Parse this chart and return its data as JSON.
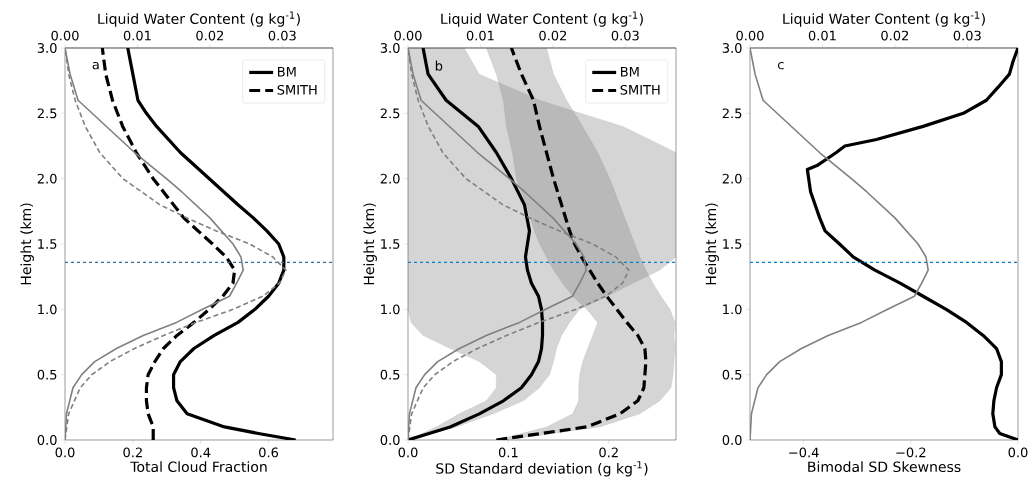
{
  "chart_data": [
    {
      "type": "line",
      "orientation": "horizontal",
      "xlabel": "Total Cloud Fraction",
      "x2label": "Liquid Water Content (g kg$^{-1}$)",
      "ylabel": "Height (km)",
      "annotations": [
        "a"
      ],
      "xlim": [
        0,
        0.79
      ],
      "xticks": [
        {
          "value": 0,
          "label": "0.0"
        },
        {
          "value": 0.2,
          "label": "0.2"
        },
        {
          "value": 0.4,
          "label": "0.4"
        },
        {
          "value": 0.6,
          "label": "0.6"
        }
      ],
      "x2lim": [
        0,
        0.037
      ],
      "x2ticks": [
        {
          "value": 0,
          "label": "0.00"
        },
        {
          "value": 0.01,
          "label": "0.01"
        },
        {
          "value": 0.02,
          "label": "0.02"
        },
        {
          "value": 0.03,
          "label": "0.03"
        }
      ],
      "ylim": [
        0,
        3
      ],
      "yticks": [
        {
          "value": 0,
          "label": "0.0"
        },
        {
          "value": 0.5,
          "label": "0.5"
        },
        {
          "value": 1,
          "label": "1.0"
        },
        {
          "value": 1.5,
          "label": "1.5"
        },
        {
          "value": 2,
          "label": "2.0"
        },
        {
          "value": 2.5,
          "label": "2.5"
        },
        {
          "value": 3,
          "label": "3.0"
        }
      ],
      "legend": "top right",
      "ref_lines": [
        {
          "axis": "y",
          "value": 1.36,
          "color": "#1f77b4",
          "line_style": "dashed"
        }
      ],
      "series": [
        {
          "name": "BM",
          "color": "#000000",
          "line_style": "solid",
          "values": [
            0.68,
            0.57,
            0.47,
            0.36,
            0.33,
            0.32,
            0.32,
            0.34,
            0.38,
            0.44,
            0.51,
            0.56,
            0.6,
            0.63,
            0.645,
            0.645,
            0.63,
            0.595,
            0.555,
            0.51,
            0.425,
            0.34,
            0.27,
            0.24,
            0.215,
            0.2,
            0.185
          ],
          "x": [
            0,
            0.05,
            0.1,
            0.2,
            0.3,
            0.4,
            0.5,
            0.6,
            0.7,
            0.8,
            0.9,
            1.0,
            1.1,
            1.2,
            1.3,
            1.4,
            1.5,
            1.6,
            1.7,
            1.8,
            2.0,
            2.2,
            2.4,
            2.5,
            2.6,
            2.8,
            3.0
          ]
        },
        {
          "name": "SMITH",
          "color": "#000000",
          "line_style": "dashed",
          "values": [
            0.26,
            0.26,
            0.245,
            0.24,
            0.24,
            0.245,
            0.265,
            0.29,
            0.33,
            0.38,
            0.425,
            0.465,
            0.495,
            0.5,
            0.475,
            0.435,
            0.35,
            0.29,
            0.26,
            0.21,
            0.17,
            0.14,
            0.12,
            0.11
          ],
          "x": [
            0,
            0.1,
            0.2,
            0.3,
            0.4,
            0.5,
            0.6,
            0.7,
            0.8,
            0.9,
            1.0,
            1.1,
            1.2,
            1.3,
            1.4,
            1.5,
            1.7,
            1.9,
            2.0,
            2.2,
            2.4,
            2.6,
            2.8,
            3.0
          ]
        },
        {
          "color": "#808080",
          "line_style": "solid",
          "axis": "x2",
          "values": [
            0,
            0.0002,
            0.0011,
            0.0023,
            0.0041,
            0.0071,
            0.0108,
            0.0154,
            0.019,
            0.0227,
            0.0237,
            0.0246,
            0.0243,
            0.0232,
            0.02,
            0.0161,
            0.014,
            0.0096,
            0.0057,
            0.0018,
            0.0007,
            0
          ],
          "x": [
            0,
            0.2,
            0.4,
            0.5,
            0.6,
            0.7,
            0.8,
            0.9,
            1.0,
            1.1,
            1.2,
            1.3,
            1.4,
            1.5,
            1.7,
            1.9,
            2.0,
            2.2,
            2.4,
            2.6,
            2.8,
            3.0
          ]
        },
        {
          "color": "#808080",
          "line_style": "dashed",
          "axis": "x2",
          "values": [
            0,
            0.0005,
            0.0021,
            0.0037,
            0.0062,
            0.0096,
            0.0136,
            0.0181,
            0.0232,
            0.0273,
            0.0296,
            0.0305,
            0.0287,
            0.0255,
            0.0209,
            0.0168,
            0.0131,
            0.008,
            0.0048,
            0.0028,
            0.0014,
            0.0005,
            0
          ],
          "x": [
            0,
            0.2,
            0.4,
            0.5,
            0.6,
            0.7,
            0.8,
            0.9,
            1.0,
            1.1,
            1.2,
            1.3,
            1.4,
            1.5,
            1.6,
            1.7,
            1.8,
            2.0,
            2.2,
            2.4,
            2.6,
            2.8,
            3.0
          ]
        }
      ]
    },
    {
      "type": "line",
      "orientation": "horizontal",
      "xlabel": "SD Standard deviation (g kg$^{-1}$)",
      "x2label": "Liquid Water Content (g kg$^{-1}$)",
      "ylabel": "Height (km)",
      "annotations": [
        "b"
      ],
      "xlim": [
        0,
        0.267
      ],
      "xticks": [
        {
          "value": 0,
          "label": "0.0"
        },
        {
          "value": 0.1,
          "label": "0.1"
        },
        {
          "value": 0.2,
          "label": "0.2"
        }
      ],
      "x2lim": [
        0,
        0.037
      ],
      "x2ticks": [
        {
          "value": 0,
          "label": "0.00"
        },
        {
          "value": 0.01,
          "label": "0.01"
        },
        {
          "value": 0.02,
          "label": "0.02"
        },
        {
          "value": 0.03,
          "label": "0.03"
        }
      ],
      "ylim": [
        0,
        3
      ],
      "yticks": [
        {
          "value": 0,
          "label": "0.0"
        },
        {
          "value": 0.5,
          "label": "0.5"
        },
        {
          "value": 1,
          "label": "1.0"
        },
        {
          "value": 1.5,
          "label": "1.5"
        },
        {
          "value": 2,
          "label": "2.0"
        },
        {
          "value": 2.5,
          "label": "2.5"
        },
        {
          "value": 3,
          "label": "3.0"
        }
      ],
      "legend": "top right",
      "ref_lines": [
        {
          "axis": "y",
          "value": 1.36,
          "color": "#1f77b4",
          "line_style": "dashed"
        }
      ],
      "series": [
        {
          "name": "BM",
          "color": "#000000",
          "line_style": "solid",
          "values": [
            0,
            0.042,
            0.071,
            0.095,
            0.113,
            0.123,
            0.13,
            0.133,
            0.134,
            0.134,
            0.133,
            0.13,
            0.123,
            0.119,
            0.117,
            0.119,
            0.121,
            0.116,
            0.103,
            0.088,
            0.07,
            0.038,
            0.02,
            0.015
          ],
          "lower": [
            0,
            0.028,
            0.051,
            0.078,
            0.088,
            0.088,
            0.071,
            0.042,
            0.015,
            0.003,
            0,
            0,
            0,
            0,
            0,
            0,
            0,
            0,
            0,
            0,
            0,
            0,
            0,
            0
          ],
          "upper": [
            0,
            0.048,
            0.085,
            0.115,
            0.131,
            0.141,
            0.145,
            0.148,
            0.153,
            0.161,
            0.171,
            0.198,
            0.224,
            0.251,
            0.267,
            0.267,
            0.267,
            0.267,
            0.267,
            0.267,
            0.214,
            0.131,
            0.071,
            0.056
          ],
          "x": [
            0,
            0.1,
            0.2,
            0.3,
            0.4,
            0.5,
            0.6,
            0.7,
            0.8,
            0.9,
            1.0,
            1.1,
            1.2,
            1.3,
            1.4,
            1.5,
            1.6,
            1.8,
            2.0,
            2.2,
            2.4,
            2.6,
            2.8,
            3.0
          ]
        },
        {
          "name": "SMITH",
          "color": "#000000",
          "line_style": "dashed",
          "values": [
            0.088,
            0.178,
            0.211,
            0.229,
            0.235,
            0.236,
            0.237,
            0.236,
            0.229,
            0.218,
            0.208,
            0.198,
            0.189,
            0.181,
            0.173,
            0.166,
            0.161,
            0.153,
            0.145,
            0.138,
            0.131,
            0.125,
            0.113,
            0.103
          ],
          "lower": [
            0.088,
            0.138,
            0.164,
            0.17,
            0.17,
            0.171,
            0.174,
            0.179,
            0.184,
            0.189,
            0.178,
            0.164,
            0.154,
            0.145,
            0.138,
            0.131,
            0.126,
            0.118,
            0.108,
            0.104,
            0.098,
            0.095,
            0.088,
            0.078
          ],
          "upper": [
            0.098,
            0.191,
            0.231,
            0.251,
            0.262,
            0.264,
            0.265,
            0.266,
            0.265,
            0.266,
            0.261,
            0.252,
            0.244,
            0.237,
            0.231,
            0.226,
            0.221,
            0.211,
            0.201,
            0.189,
            0.174,
            0.158,
            0.145,
            0.138
          ],
          "x": [
            0,
            0.1,
            0.2,
            0.3,
            0.4,
            0.5,
            0.6,
            0.7,
            0.8,
            0.9,
            1.0,
            1.1,
            1.2,
            1.3,
            1.4,
            1.5,
            1.6,
            1.8,
            2.0,
            2.2,
            2.4,
            2.6,
            2.8,
            3.0
          ]
        },
        {
          "color": "#808080",
          "line_style": "solid",
          "axis": "x2",
          "values": [
            0,
            0.0002,
            0.0011,
            0.0023,
            0.0041,
            0.0071,
            0.0108,
            0.0154,
            0.019,
            0.0227,
            0.0237,
            0.0246,
            0.0243,
            0.0232,
            0.02,
            0.0161,
            0.014,
            0.0096,
            0.0057,
            0.0018,
            0.0007,
            0
          ],
          "x": [
            0,
            0.2,
            0.4,
            0.5,
            0.6,
            0.7,
            0.8,
            0.9,
            1.0,
            1.1,
            1.2,
            1.3,
            1.4,
            1.5,
            1.7,
            1.9,
            2.0,
            2.2,
            2.4,
            2.6,
            2.8,
            3.0
          ]
        },
        {
          "color": "#808080",
          "line_style": "dashed",
          "axis": "x2",
          "values": [
            0,
            0.0005,
            0.0021,
            0.0037,
            0.0062,
            0.0096,
            0.0136,
            0.0181,
            0.0232,
            0.0273,
            0.0296,
            0.0305,
            0.0287,
            0.0255,
            0.0209,
            0.0168,
            0.0131,
            0.008,
            0.0048,
            0.0028,
            0.0014,
            0.0005,
            0
          ],
          "x": [
            0,
            0.2,
            0.4,
            0.5,
            0.6,
            0.7,
            0.8,
            0.9,
            1.0,
            1.1,
            1.2,
            1.3,
            1.4,
            1.5,
            1.6,
            1.7,
            1.8,
            2.0,
            2.2,
            2.4,
            2.6,
            2.8,
            3.0
          ]
        }
      ]
    },
    {
      "type": "line",
      "orientation": "horizontal",
      "xlabel": "Bimodal SD Skewness",
      "x2label": "Liquid Water Content (g kg$^{-1}$)",
      "ylabel": "Height (km)",
      "annotations": [
        "c"
      ],
      "xlim": [
        -0.5,
        0
      ],
      "xticks": [
        {
          "value": -0.4,
          "label": "−0.4"
        },
        {
          "value": -0.2,
          "label": "−0.2"
        },
        {
          "value": 0,
          "label": "0.0"
        }
      ],
      "x2lim": [
        0,
        0.037
      ],
      "x2ticks": [
        {
          "value": 0,
          "label": "0.00"
        },
        {
          "value": 0.01,
          "label": "0.01"
        },
        {
          "value": 0.02,
          "label": "0.02"
        },
        {
          "value": 0.03,
          "label": "0.03"
        }
      ],
      "ylim": [
        0,
        3
      ],
      "yticks": [
        {
          "value": 0,
          "label": "0.0"
        },
        {
          "value": 0.5,
          "label": "0.5"
        },
        {
          "value": 1,
          "label": "1.0"
        },
        {
          "value": 1.5,
          "label": "1.5"
        },
        {
          "value": 2,
          "label": "2.0"
        },
        {
          "value": 2.5,
          "label": "2.5"
        },
        {
          "value": 3,
          "label": "3.0"
        }
      ],
      "ref_lines": [
        {
          "axis": "y",
          "value": 1.36,
          "color": "#1f77b4",
          "line_style": "dashed"
        }
      ],
      "series": [
        {
          "color": "#000000",
          "line_style": "solid",
          "values": [
            0,
            -0.034,
            -0.043,
            -0.047,
            -0.045,
            -0.04,
            -0.031,
            -0.031,
            -0.04,
            -0.065,
            -0.096,
            -0.134,
            -0.177,
            -0.22,
            -0.267,
            -0.307,
            -0.333,
            -0.36,
            -0.37,
            -0.387,
            -0.393,
            -0.375,
            -0.339,
            -0.323,
            -0.264,
            -0.177,
            -0.102,
            -0.059,
            -0.037,
            -0.016,
            -0.009,
            0
          ],
          "x": [
            0,
            0.05,
            0.1,
            0.2,
            0.3,
            0.4,
            0.5,
            0.6,
            0.7,
            0.8,
            0.9,
            1.0,
            1.1,
            1.2,
            1.3,
            1.4,
            1.5,
            1.6,
            1.7,
            1.9,
            2.07,
            2.1,
            2.2,
            2.25,
            2.3,
            2.4,
            2.5,
            2.6,
            2.7,
            2.8,
            2.9,
            3.0
          ]
        },
        {
          "color": "#808080",
          "line_style": "solid",
          "axis": "x2",
          "values": [
            0,
            0.0002,
            0.0011,
            0.0023,
            0.0041,
            0.0071,
            0.0108,
            0.0154,
            0.019,
            0.0227,
            0.0237,
            0.0246,
            0.0243,
            0.0232,
            0.02,
            0.0161,
            0.014,
            0.0096,
            0.0057,
            0.0018,
            0.0007,
            0
          ],
          "x": [
            0,
            0.2,
            0.4,
            0.5,
            0.6,
            0.7,
            0.8,
            0.9,
            1.0,
            1.1,
            1.2,
            1.3,
            1.4,
            1.5,
            1.7,
            1.9,
            2.0,
            2.2,
            2.4,
            2.6,
            2.8,
            3.0
          ]
        }
      ]
    }
  ]
}
